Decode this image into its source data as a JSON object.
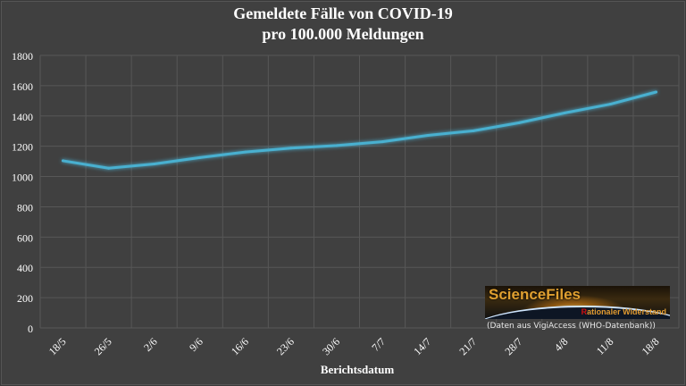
{
  "chart_data": {
    "type": "line",
    "title": "Gemeldete Fälle von COVID-19",
    "subtitle": "pro 100.000 Meldungen",
    "xlabel": "Berichtsdatum",
    "ylabel": "",
    "ylim": [
      0,
      1800
    ],
    "yticks": [
      0,
      200,
      400,
      600,
      800,
      1000,
      1200,
      1400,
      1600,
      1800
    ],
    "grid": true,
    "categories": [
      "18/5",
      "26/5",
      "2/6",
      "9/6",
      "16/6",
      "23/6",
      "30/6",
      "7/7",
      "14/7",
      "21/7",
      "28/7",
      "4/8",
      "11/8",
      "18/8"
    ],
    "values": [
      1104,
      1055,
      1083,
      1125,
      1162,
      1188,
      1205,
      1230,
      1272,
      1302,
      1355,
      1420,
      1478,
      1558
    ],
    "line_color": "#4ab0d0"
  },
  "logo": {
    "brand": "ScienceFiles",
    "tagline_first": "R",
    "tagline_rest": "ationaler Widerstand"
  },
  "source_note": "(Daten aus VigiAccess (WHO-Datenbank))"
}
